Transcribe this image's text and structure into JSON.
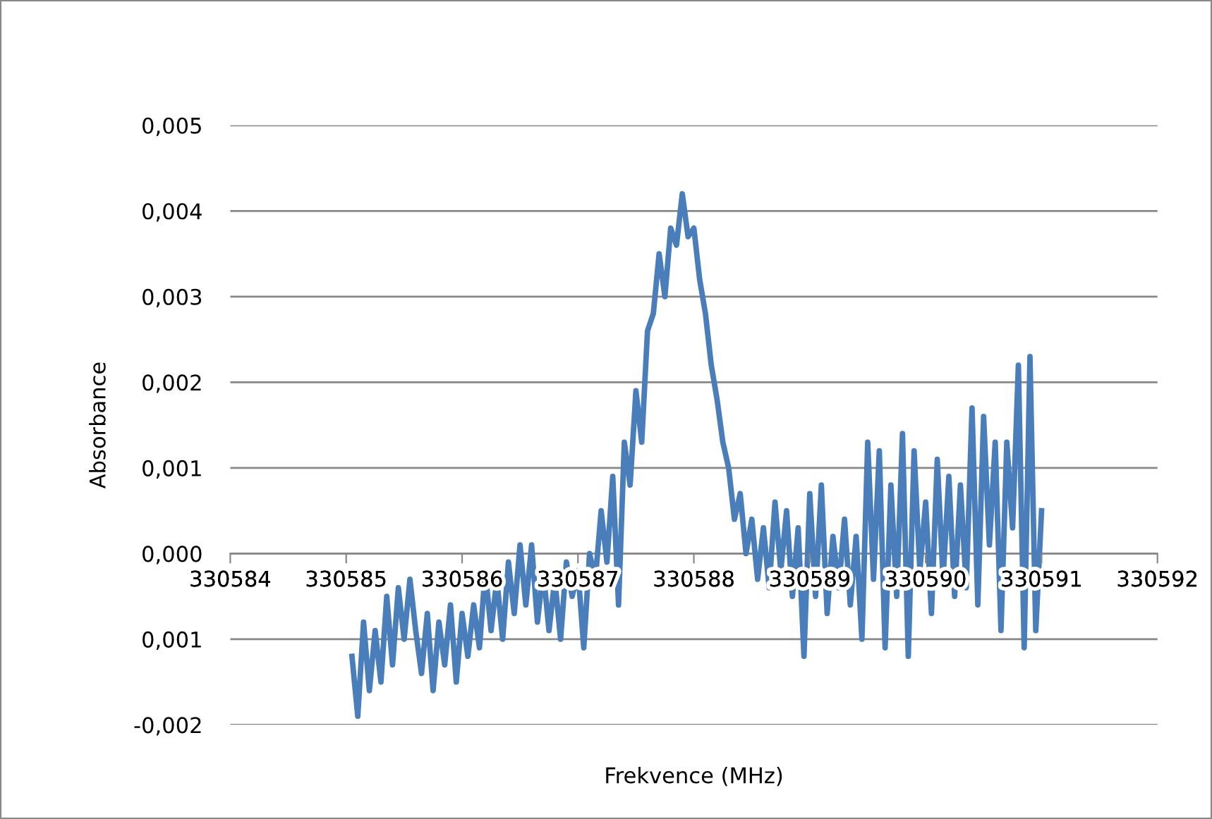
{
  "chart_data": {
    "type": "line",
    "xlabel": "Frekvence (MHz)",
    "ylabel": "Absorbance",
    "xlim": [
      330584,
      330592
    ],
    "xticks": [
      330584,
      330585,
      330586,
      330587,
      330588,
      330589,
      330590,
      330591,
      330592
    ],
    "ylim": [
      -0.002,
      0.005
    ],
    "yticks": [
      {
        "value": -0.002,
        "label": "-0,002"
      },
      {
        "value": -0.001,
        "label": "0,001"
      },
      {
        "value": 0.0,
        "label": "0,000"
      },
      {
        "value": 0.001,
        "label": "0,001"
      },
      {
        "value": 0.002,
        "label": "0,002"
      },
      {
        "value": 0.003,
        "label": "0,003"
      },
      {
        "value": 0.004,
        "label": "0,004"
      },
      {
        "value": 0.005,
        "label": "0,005"
      }
    ],
    "grid": "y",
    "legend": false,
    "marker": "none",
    "line_style": "solid",
    "series": [
      {
        "color": "#4a7ebb",
        "x": [
          330585.05,
          330585.1,
          330585.15,
          330585.2,
          330585.25,
          330585.3,
          330585.35,
          330585.4,
          330585.45,
          330585.5,
          330585.55,
          330585.6,
          330585.65,
          330585.7,
          330585.75,
          330585.8,
          330585.85,
          330585.9,
          330585.95,
          330586.0,
          330586.05,
          330586.1,
          330586.15,
          330586.2,
          330586.25,
          330586.3,
          330586.35,
          330586.4,
          330586.45,
          330586.5,
          330586.55,
          330586.6,
          330586.65,
          330586.7,
          330586.75,
          330586.8,
          330586.85,
          330586.9,
          330586.95,
          330587.0,
          330587.05,
          330587.1,
          330587.15,
          330587.2,
          330587.25,
          330587.3,
          330587.35,
          330587.4,
          330587.45,
          330587.5,
          330587.55,
          330587.6,
          330587.65,
          330587.7,
          330587.75,
          330587.8,
          330587.85,
          330587.9,
          330587.95,
          330588.0,
          330588.05,
          330588.1,
          330588.15,
          330588.2,
          330588.25,
          330588.3,
          330588.35,
          330588.4,
          330588.45,
          330588.5,
          330588.55,
          330588.6,
          330588.65,
          330588.7,
          330588.75,
          330588.8,
          330588.85,
          330588.9,
          330588.95,
          330589.0,
          330589.05,
          330589.1,
          330589.15,
          330589.2,
          330589.25,
          330589.3,
          330589.35,
          330589.4,
          330589.45,
          330589.5,
          330589.55,
          330589.6,
          330589.65,
          330589.7,
          330589.75,
          330589.8,
          330589.85,
          330589.9,
          330589.95,
          330590.0,
          330590.05,
          330590.1,
          330590.15,
          330590.2,
          330590.25,
          330590.3,
          330590.35,
          330590.4,
          330590.45,
          330590.5,
          330590.55,
          330590.6,
          330590.65,
          330590.7,
          330590.75,
          330590.8,
          330590.85,
          330590.9,
          330590.95,
          330591.0
        ],
        "values": [
          -0.0012,
          -0.0019,
          -0.0008,
          -0.0016,
          -0.0009,
          -0.0015,
          -0.0005,
          -0.0013,
          -0.0004,
          -0.001,
          -0.0003,
          -0.0009,
          -0.0014,
          -0.0007,
          -0.0016,
          -0.0008,
          -0.0013,
          -0.0006,
          -0.0015,
          -0.0007,
          -0.0012,
          -0.0006,
          -0.0011,
          -0.0002,
          -0.0009,
          -0.0003,
          -0.001,
          -0.0001,
          -0.0007,
          0.0001,
          -0.0006,
          0.0001,
          -0.0008,
          -0.0002,
          -0.0009,
          -0.0003,
          -0.001,
          -0.0001,
          -0.0005,
          -0.0002,
          -0.0011,
          0.0,
          -0.0003,
          0.0005,
          -0.0001,
          0.0009,
          -0.0006,
          0.0013,
          0.0008,
          0.0019,
          0.0013,
          0.0026,
          0.0028,
          0.0035,
          0.003,
          0.0038,
          0.0036,
          0.0042,
          0.0037,
          0.0038,
          0.0032,
          0.0028,
          0.0022,
          0.0018,
          0.0013,
          0.001,
          0.0004,
          0.0007,
          0.0,
          0.0004,
          -0.0003,
          0.0003,
          -0.0004,
          0.0006,
          -0.0002,
          0.0005,
          -0.0005,
          0.0003,
          -0.0012,
          0.0007,
          -0.0005,
          0.0008,
          -0.0007,
          0.0002,
          -0.0004,
          0.0004,
          -0.0006,
          0.0002,
          -0.001,
          0.0013,
          -0.0003,
          0.0012,
          -0.0011,
          0.0008,
          -0.0005,
          0.0014,
          -0.0012,
          0.0012,
          -0.0002,
          0.0006,
          -0.0007,
          0.0011,
          -0.0003,
          0.0009,
          -0.0005,
          0.0008,
          -0.0004,
          0.0017,
          -0.0006,
          0.0016,
          0.0001,
          0.0013,
          -0.0009,
          0.0013,
          0.0003,
          0.0022,
          -0.0011,
          0.0023,
          -0.0009,
          0.0005
        ]
      }
    ]
  }
}
